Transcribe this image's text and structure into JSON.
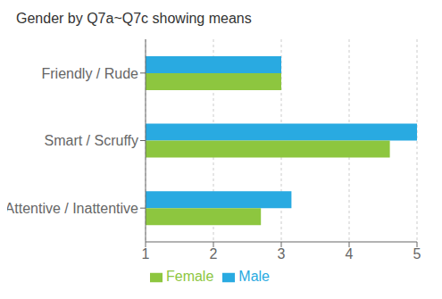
{
  "chart_data": {
    "type": "bar",
    "title": "Gender by Q7a~Q7c showing means",
    "orientation": "horizontal",
    "categories": [
      "Friendly / Rude",
      "Smart / Scruffy",
      "Attentive / Inattentive"
    ],
    "series": [
      {
        "name": "Male",
        "color": "#29aae1",
        "values": [
          3.0,
          5.0,
          3.15
        ]
      },
      {
        "name": "Female",
        "color": "#8dc63f",
        "values": [
          3.0,
          4.6,
          2.7
        ]
      }
    ],
    "xlim": [
      1,
      5
    ],
    "xticks": [
      1,
      2,
      3,
      4,
      5
    ],
    "grid": true,
    "legend": "bottom"
  }
}
